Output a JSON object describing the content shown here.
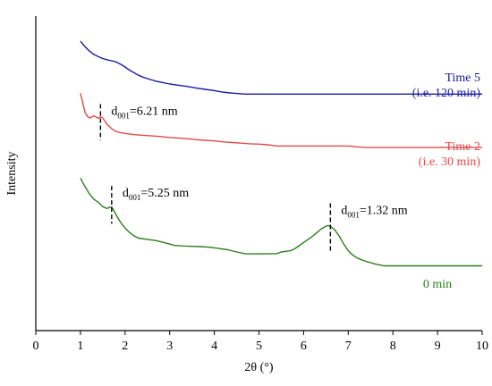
{
  "chart_data": {
    "type": "line",
    "xlabel": "2θ (°)",
    "ylabel": "Intensity",
    "xlim": [
      0,
      10
    ],
    "xticks": [
      0,
      1,
      2,
      3,
      4,
      5,
      6,
      7,
      8,
      9,
      10
    ],
    "ylim": [
      0,
      100
    ],
    "grid": false,
    "series": [
      {
        "name_lines": [
          "Time 5",
          "(i.e. 120 min)"
        ],
        "color": "#1a1a9e",
        "points": [
          [
            1.0,
            92
          ],
          [
            1.1,
            90.3
          ],
          [
            1.2,
            88.9
          ],
          [
            1.3,
            87.8
          ],
          [
            1.4,
            87.1
          ],
          [
            1.5,
            86.5
          ],
          [
            1.6,
            86.1
          ],
          [
            1.7,
            85.8
          ],
          [
            1.8,
            85.4
          ],
          [
            1.9,
            84.7
          ],
          [
            2.0,
            83.8
          ],
          [
            2.1,
            82.8
          ],
          [
            2.2,
            82.0
          ],
          [
            2.3,
            81.2
          ],
          [
            2.4,
            80.6
          ],
          [
            2.5,
            80.1
          ],
          [
            2.6,
            79.7
          ],
          [
            2.7,
            79.3
          ],
          [
            2.8,
            79.0
          ],
          [
            2.9,
            78.7
          ],
          [
            3.0,
            78.4
          ],
          [
            3.2,
            78.0
          ],
          [
            3.4,
            77.6
          ],
          [
            3.6,
            77.1
          ],
          [
            3.8,
            76.7
          ],
          [
            4.0,
            76.3
          ],
          [
            4.2,
            75.8
          ],
          [
            4.4,
            75.5
          ],
          [
            4.6,
            75.3
          ],
          [
            4.7,
            75.2
          ],
          [
            5.0,
            75.2
          ],
          [
            5.5,
            75.2
          ],
          [
            6.0,
            75.2
          ],
          [
            7.0,
            75.2
          ],
          [
            8.0,
            75.2
          ],
          [
            9.0,
            75.2
          ],
          [
            10.0,
            75.2
          ]
        ]
      },
      {
        "name_lines": [
          "Time 2",
          "(i.e. 30 min)"
        ],
        "color": "#e04a4a",
        "points": [
          [
            1.0,
            75.5
          ],
          [
            1.05,
            72.5
          ],
          [
            1.1,
            69.5
          ],
          [
            1.15,
            68.2
          ],
          [
            1.2,
            67.6
          ],
          [
            1.25,
            67.9
          ],
          [
            1.3,
            68.3
          ],
          [
            1.35,
            67.9
          ],
          [
            1.4,
            67.5
          ],
          [
            1.45,
            68.0
          ],
          [
            1.5,
            67.6
          ],
          [
            1.55,
            66.6
          ],
          [
            1.6,
            65.5
          ],
          [
            1.7,
            64.2
          ],
          [
            1.8,
            63.3
          ],
          [
            1.9,
            62.9
          ],
          [
            2.0,
            62.7
          ],
          [
            2.2,
            62.3
          ],
          [
            2.4,
            62.1
          ],
          [
            2.6,
            61.9
          ],
          [
            2.8,
            61.7
          ],
          [
            3.0,
            61.4
          ],
          [
            3.2,
            61.2
          ],
          [
            3.4,
            61.0
          ],
          [
            3.6,
            60.7
          ],
          [
            3.8,
            60.5
          ],
          [
            4.0,
            60.3
          ],
          [
            4.2,
            60.0
          ],
          [
            4.4,
            59.8
          ],
          [
            4.6,
            59.6
          ],
          [
            4.8,
            59.4
          ],
          [
            5.0,
            59.3
          ],
          [
            5.2,
            59.1
          ],
          [
            5.4,
            58.7
          ],
          [
            5.6,
            58.7
          ],
          [
            6.0,
            58.7
          ],
          [
            6.5,
            58.7
          ],
          [
            7.0,
            58.7
          ],
          [
            7.2,
            58.4
          ],
          [
            7.4,
            58.2
          ],
          [
            8.0,
            58.2
          ],
          [
            9.0,
            58.2
          ],
          [
            10.0,
            58.2
          ]
        ]
      },
      {
        "name_lines": [
          "0 min"
        ],
        "color": "#2e7d1f",
        "points": [
          [
            1.0,
            48.5
          ],
          [
            1.1,
            45.8
          ],
          [
            1.2,
            43.5
          ],
          [
            1.3,
            41.8
          ],
          [
            1.4,
            40.8
          ],
          [
            1.5,
            39.4
          ],
          [
            1.6,
            38.8
          ],
          [
            1.65,
            39.2
          ],
          [
            1.7,
            39.3
          ],
          [
            1.75,
            38.2
          ],
          [
            1.8,
            36.8
          ],
          [
            1.9,
            34.4
          ],
          [
            2.0,
            32.6
          ],
          [
            2.1,
            31.2
          ],
          [
            2.2,
            30.1
          ],
          [
            2.3,
            29.4
          ],
          [
            2.5,
            29.0
          ],
          [
            2.7,
            28.6
          ],
          [
            2.9,
            27.9
          ],
          [
            3.1,
            27.1
          ],
          [
            3.3,
            26.9
          ],
          [
            3.5,
            26.8
          ],
          [
            3.7,
            26.7
          ],
          [
            3.9,
            26.5
          ],
          [
            4.1,
            26.1
          ],
          [
            4.3,
            25.7
          ],
          [
            4.5,
            25.0
          ],
          [
            4.7,
            24.4
          ],
          [
            5.0,
            24.4
          ],
          [
            5.2,
            24.4
          ],
          [
            5.4,
            24.5
          ],
          [
            5.5,
            25.0
          ],
          [
            5.6,
            25.2
          ],
          [
            5.7,
            25.4
          ],
          [
            5.8,
            26.0
          ],
          [
            5.9,
            27.0
          ],
          [
            6.0,
            28.0
          ],
          [
            6.1,
            29.0
          ],
          [
            6.2,
            30.0
          ],
          [
            6.3,
            31.2
          ],
          [
            6.4,
            32.4
          ],
          [
            6.5,
            33.2
          ],
          [
            6.55,
            33.4
          ],
          [
            6.6,
            33.2
          ],
          [
            6.7,
            32.0
          ],
          [
            6.8,
            30.0
          ],
          [
            6.9,
            27.5
          ],
          [
            7.0,
            25.4
          ],
          [
            7.1,
            24.0
          ],
          [
            7.2,
            23.1
          ],
          [
            7.3,
            22.5
          ],
          [
            7.4,
            22.0
          ],
          [
            7.5,
            21.6
          ],
          [
            7.6,
            21.2
          ],
          [
            7.7,
            20.9
          ],
          [
            7.8,
            20.6
          ],
          [
            8.0,
            20.6
          ],
          [
            9.0,
            20.6
          ],
          [
            10.0,
            20.6
          ]
        ]
      }
    ],
    "annotations": [
      {
        "prefix": "d",
        "sub": "001",
        "value": "=6.21 nm",
        "x": 1.45,
        "y_top": 72.0,
        "y_bottom": 60.5
      },
      {
        "prefix": "d",
        "sub": "001",
        "value": "=5.25 nm",
        "x": 1.7,
        "y_top": 46.0,
        "y_bottom": 34.0
      },
      {
        "prefix": "d",
        "sub": "001",
        "value": "=1.32 nm",
        "x": 6.6,
        "y_top": 40.5,
        "y_bottom": 25.0
      }
    ]
  }
}
